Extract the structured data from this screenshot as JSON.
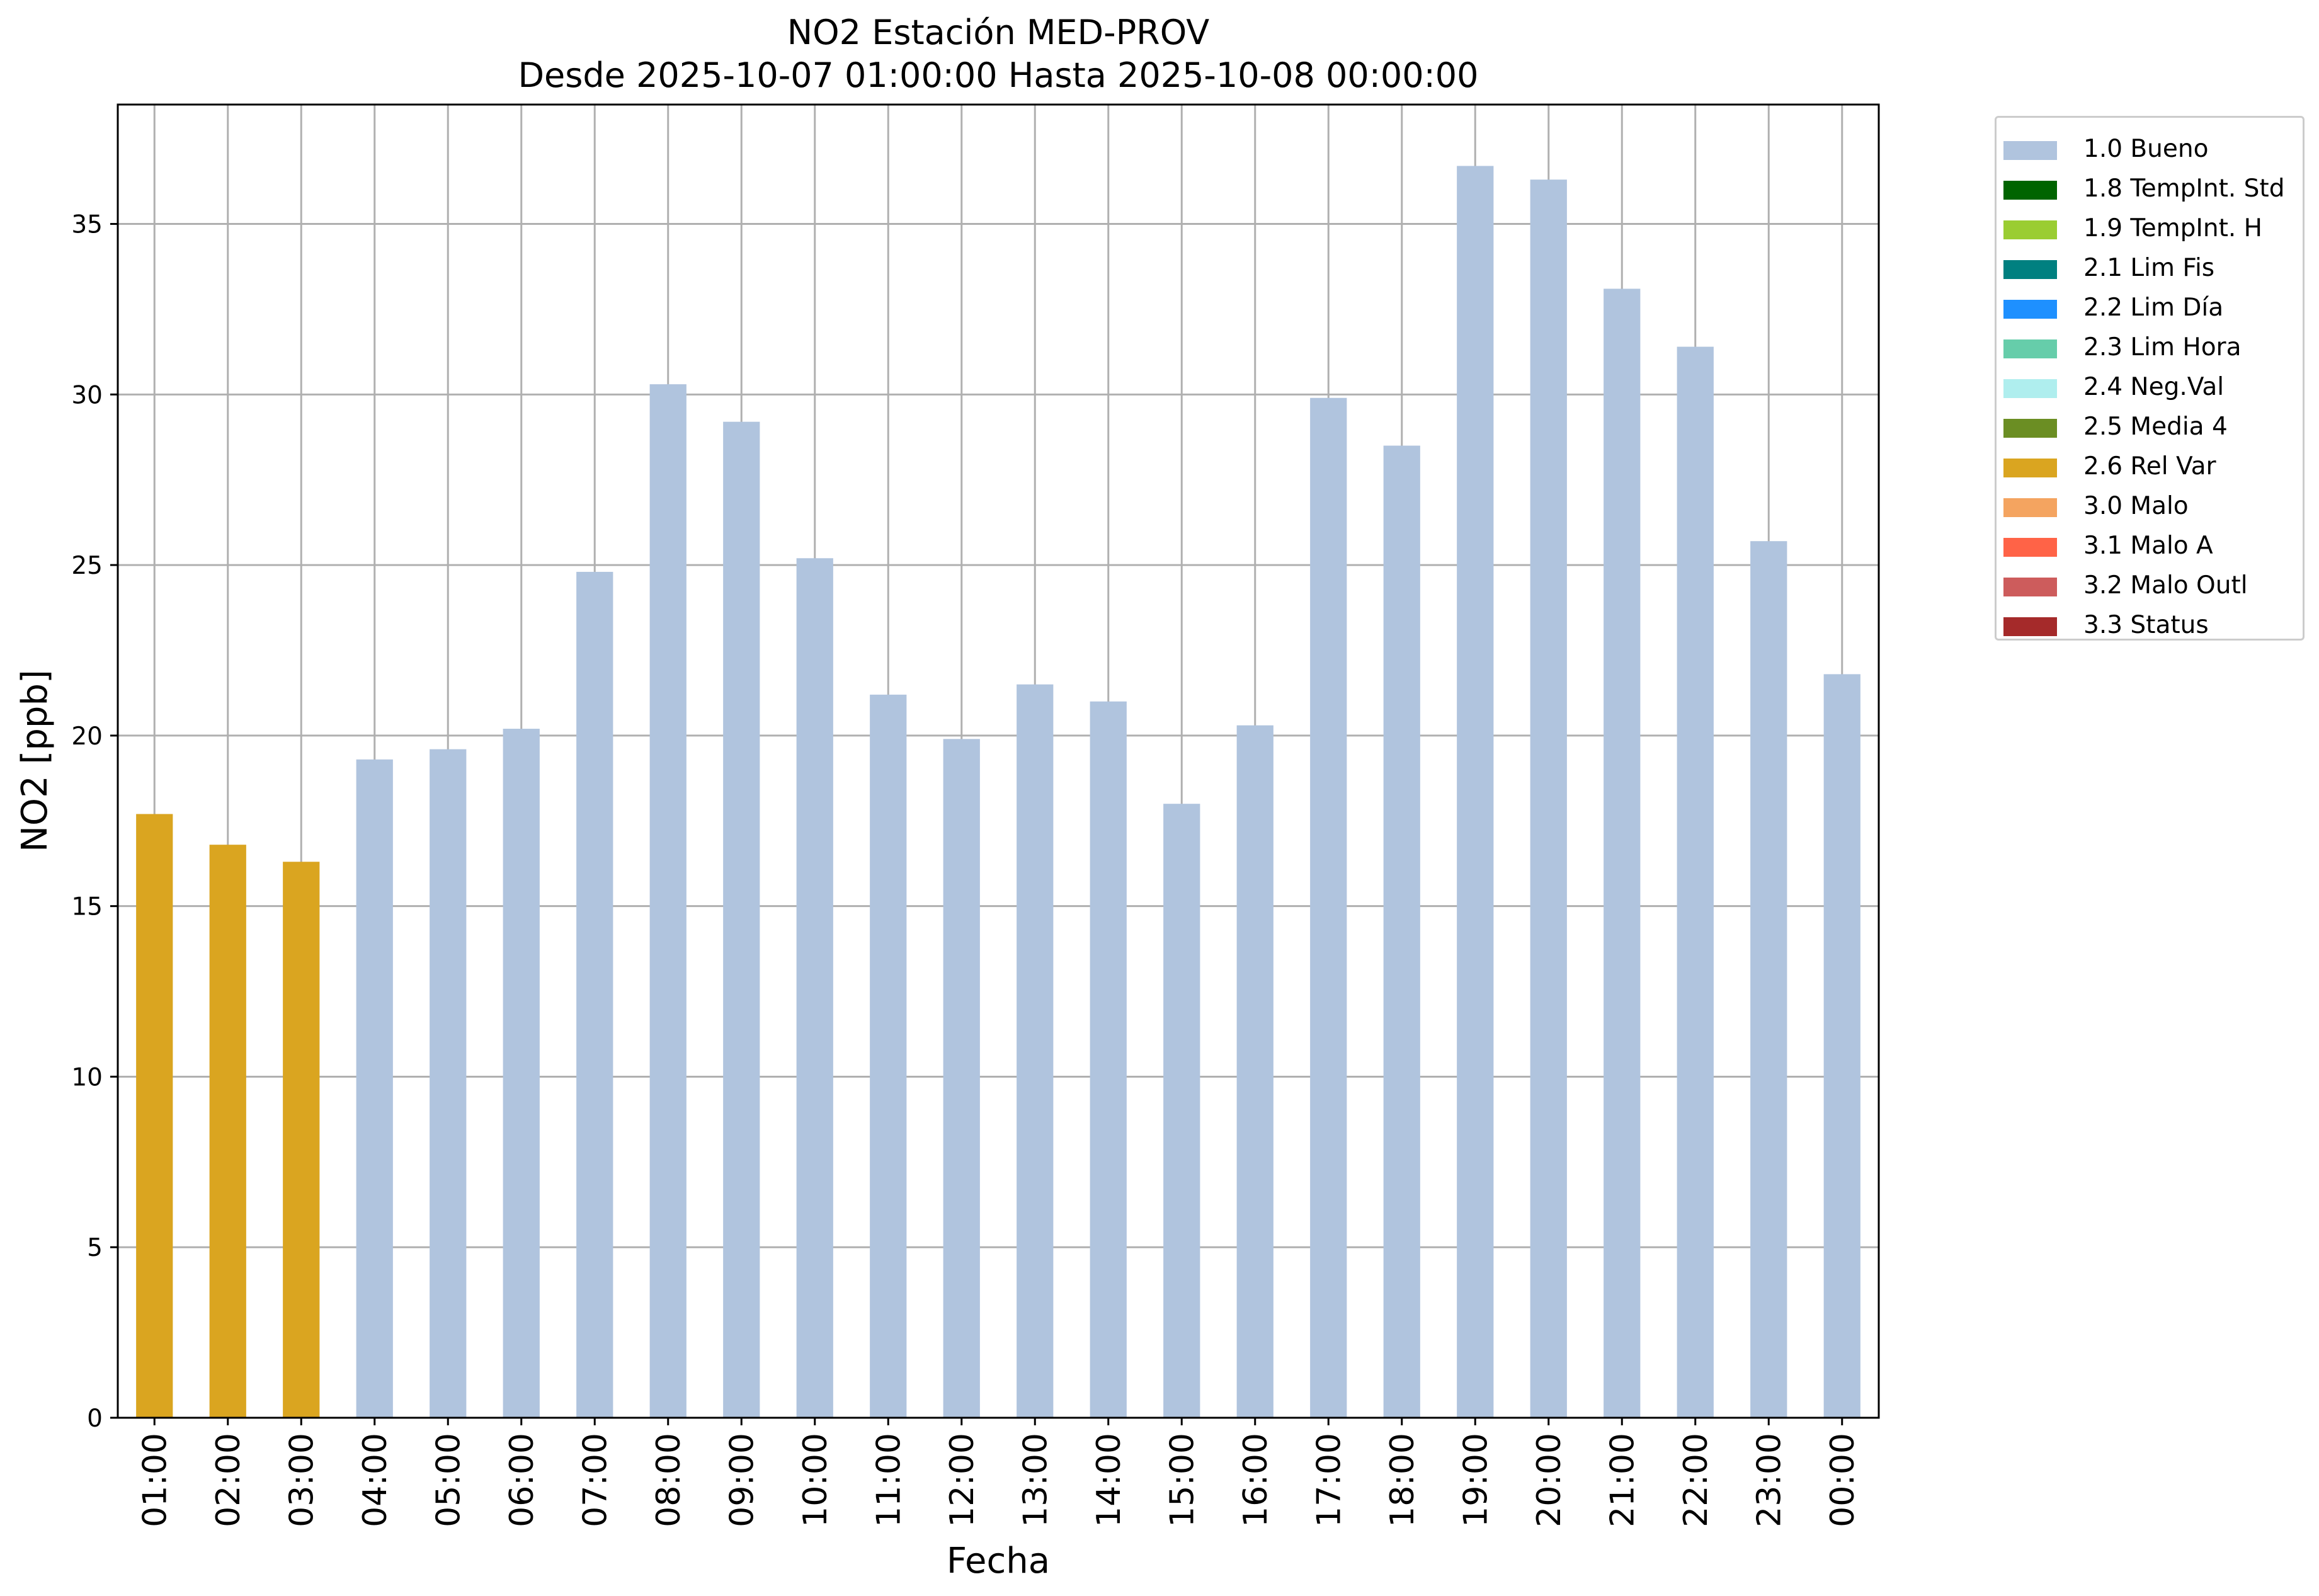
{
  "chart_data": {
    "type": "bar",
    "title": "NO2 Estación MED-PROV",
    "subtitle": "Desde 2025-10-07 01:00:00 Hasta 2025-10-08 00:00:00",
    "xlabel": "Fecha",
    "ylabel": "NO2 [ppb]",
    "ylim": [
      0,
      38.5
    ],
    "yticks": [
      "0",
      "5",
      "10",
      "15",
      "20",
      "25",
      "30",
      "35"
    ],
    "grid": true,
    "legend_position": "outside-top-right",
    "categories": [
      "01:00",
      "02:00",
      "03:00",
      "04:00",
      "05:00",
      "06:00",
      "07:00",
      "08:00",
      "09:00",
      "10:00",
      "11:00",
      "12:00",
      "13:00",
      "14:00",
      "15:00",
      "16:00",
      "17:00",
      "18:00",
      "19:00",
      "20:00",
      "21:00",
      "22:00",
      "23:00",
      "00:00"
    ],
    "values": [
      17.7,
      16.8,
      16.3,
      19.3,
      19.6,
      20.2,
      24.8,
      30.3,
      29.2,
      25.2,
      21.2,
      19.9,
      21.5,
      21.0,
      18.0,
      20.3,
      29.9,
      28.5,
      36.7,
      36.3,
      33.1,
      31.4,
      25.7,
      21.8
    ],
    "flags": [
      "2.6 Rel Var",
      "2.6 Rel Var",
      "2.6 Rel Var",
      "1.0 Bueno",
      "1.0 Bueno",
      "1.0 Bueno",
      "1.0 Bueno",
      "1.0 Bueno",
      "1.0 Bueno",
      "1.0 Bueno",
      "1.0 Bueno",
      "1.0 Bueno",
      "1.0 Bueno",
      "1.0 Bueno",
      "1.0 Bueno",
      "1.0 Bueno",
      "1.0 Bueno",
      "1.0 Bueno",
      "1.0 Bueno",
      "1.0 Bueno",
      "1.0 Bueno",
      "1.0 Bueno",
      "1.0 Bueno",
      "1.0 Bueno"
    ],
    "legend": [
      {
        "label": "1.0 Bueno",
        "color": "#b0c4de"
      },
      {
        "label": "1.8 TempInt. Std",
        "color": "#006400"
      },
      {
        "label": "1.9 TempInt. H",
        "color": "#9acd32"
      },
      {
        "label": "2.1 Lim Fis",
        "color": "#008080"
      },
      {
        "label": "2.2 Lim Día",
        "color": "#1e90ff"
      },
      {
        "label": "2.3 Lim Hora",
        "color": "#66cdaa"
      },
      {
        "label": "2.4 Neg.Val",
        "color": "#afeeee"
      },
      {
        "label": "2.5 Media 4",
        "color": "#6b8e23"
      },
      {
        "label": "2.6 Rel Var",
        "color": "#daa520"
      },
      {
        "label": "3.0 Malo",
        "color": "#f4a460"
      },
      {
        "label": "3.1 Malo A",
        "color": "#ff6347"
      },
      {
        "label": "3.2 Malo Outl",
        "color": "#cd5c5c"
      },
      {
        "label": "3.3 Status",
        "color": "#a52a2a"
      }
    ]
  }
}
